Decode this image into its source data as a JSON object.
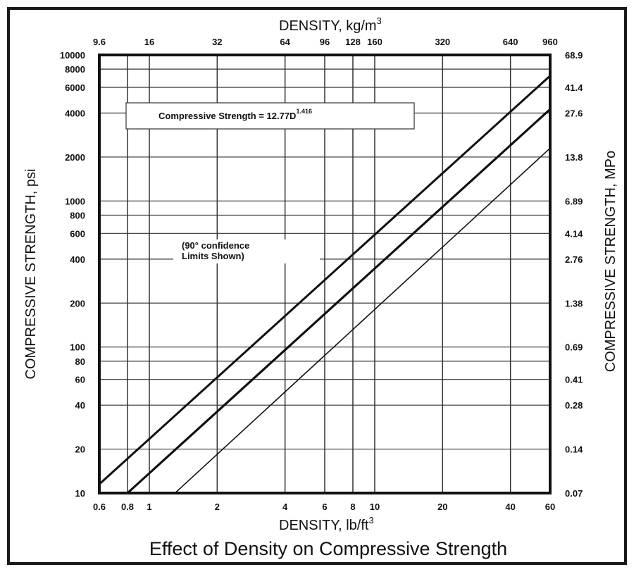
{
  "caption": "Effect of Density on Compressive Strength",
  "chart_data": {
    "type": "line",
    "x_scale": "log",
    "y_scale": "log",
    "grid": true,
    "xlim": [
      0.6,
      60
    ],
    "ylim": [
      10,
      10000
    ],
    "xlabel_main": "DENSITY, lb/ft",
    "xlabel_sup": "3",
    "xlabel_top_main": "DENSITY, kg/m",
    "xlabel_top_sup": "3",
    "ylabel_left": "COMPRESSIVE STRENGTH, psi",
    "ylabel_right": "COMPRESSIVE STRENGTH, MPo",
    "x_ticks": [
      {
        "value": 0.6,
        "label": "0.6"
      },
      {
        "value": 0.8,
        "label": "0.8"
      },
      {
        "value": 1,
        "label": "1"
      },
      {
        "value": 2,
        "label": "2"
      },
      {
        "value": 4,
        "label": "4"
      },
      {
        "value": 6,
        "label": "6"
      },
      {
        "value": 8,
        "label": "8"
      },
      {
        "value": 10,
        "label": "10"
      },
      {
        "value": 20,
        "label": "20"
      },
      {
        "value": 40,
        "label": "40"
      },
      {
        "value": 60,
        "label": "60"
      }
    ],
    "x_ticks_top": [
      {
        "value": 0.6,
        "label": "9.6"
      },
      {
        "value": 1,
        "label": "16"
      },
      {
        "value": 2,
        "label": "32"
      },
      {
        "value": 4,
        "label": "64"
      },
      {
        "value": 6,
        "label": "96"
      },
      {
        "value": 8,
        "label": "128"
      },
      {
        "value": 10,
        "label": "160"
      },
      {
        "value": 20,
        "label": "320"
      },
      {
        "value": 40,
        "label": "640"
      },
      {
        "value": 60,
        "label": "960"
      }
    ],
    "y_ticks": [
      {
        "value": 10,
        "label": "10"
      },
      {
        "value": 20,
        "label": "20"
      },
      {
        "value": 40,
        "label": "40"
      },
      {
        "value": 60,
        "label": "60"
      },
      {
        "value": 80,
        "label": "80"
      },
      {
        "value": 100,
        "label": "100"
      },
      {
        "value": 200,
        "label": "200"
      },
      {
        "value": 400,
        "label": "400"
      },
      {
        "value": 600,
        "label": "600"
      },
      {
        "value": 800,
        "label": "800"
      },
      {
        "value": 1000,
        "label": "1000"
      },
      {
        "value": 2000,
        "label": "2000"
      },
      {
        "value": 4000,
        "label": "4000"
      },
      {
        "value": 6000,
        "label": "6000"
      },
      {
        "value": 8000,
        "label": "8000"
      },
      {
        "value": 10000,
        "label": "10000"
      }
    ],
    "y_ticks_right": [
      {
        "value": 10,
        "label": "0.07"
      },
      {
        "value": 20,
        "label": "0.14"
      },
      {
        "value": 40,
        "label": "0.28"
      },
      {
        "value": 60,
        "label": "0.41"
      },
      {
        "value": 100,
        "label": "0.69"
      },
      {
        "value": 200,
        "label": "1.38"
      },
      {
        "value": 400,
        "label": "2.76"
      },
      {
        "value": 600,
        "label": "4.14"
      },
      {
        "value": 1000,
        "label": "6.89"
      },
      {
        "value": 2000,
        "label": "13.8"
      },
      {
        "value": 4000,
        "label": "27.6"
      },
      {
        "value": 6000,
        "label": "41.4"
      },
      {
        "value": 10000,
        "label": "68.9"
      }
    ],
    "equation_main": "Compressive Strength = 12.77D",
    "equation_sup": "1.416",
    "note_line1": "(90° confidence",
    "note_line2": "Limits Shown)",
    "series": [
      {
        "role": "upper_confidence",
        "stroke_width": 3,
        "x": [
          0.6,
          60
        ],
        "y": [
          11.5,
          7200
        ]
      },
      {
        "role": "fit",
        "stroke_width": 3.2,
        "x": [
          0.8,
          60
        ],
        "y": [
          10,
          4250
        ]
      },
      {
        "role": "lower_confidence",
        "stroke_width": 1.6,
        "x": [
          1.3,
          60
        ],
        "y": [
          10,
          2300
        ]
      }
    ]
  }
}
